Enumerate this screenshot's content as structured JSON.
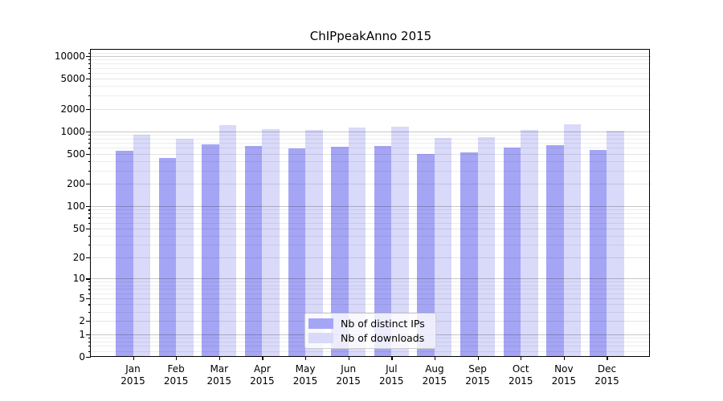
{
  "chart_data": {
    "type": "bar",
    "title": "ChIPpeakAnno 2015",
    "x_month_labels": [
      "Jan",
      "Feb",
      "Mar",
      "Apr",
      "May",
      "Jun",
      "Jul",
      "Aug",
      "Sep",
      "Oct",
      "Nov",
      "Dec"
    ],
    "x_year_label": "2015",
    "series": [
      {
        "name": "Nb of distinct IPs",
        "color": "#a5a5f5",
        "values": [
          545,
          440,
          665,
          640,
          590,
          615,
          635,
          500,
          525,
          610,
          650,
          565
        ]
      },
      {
        "name": "Nb of downloads",
        "color": "#d9d9f9",
        "values": [
          900,
          795,
          1210,
          1070,
          1050,
          1115,
          1145,
          820,
          845,
          1050,
          1230,
          1025
        ]
      }
    ],
    "y_scale": "log10(1+x)",
    "y_ticks": [
      0,
      1,
      2,
      5,
      10,
      20,
      50,
      100,
      200,
      500,
      1000,
      2000,
      5000,
      10000
    ],
    "ylim": [
      0,
      12000
    ],
    "grid": true,
    "legend": {
      "position": "bottom-center"
    },
    "colors": {
      "major_gridline": "rgba(0,0,0,0.22)",
      "labeled_gridline": "rgba(0,0,0,0.10)",
      "minor_gridline": "rgba(0,0,0,0.07)"
    }
  }
}
